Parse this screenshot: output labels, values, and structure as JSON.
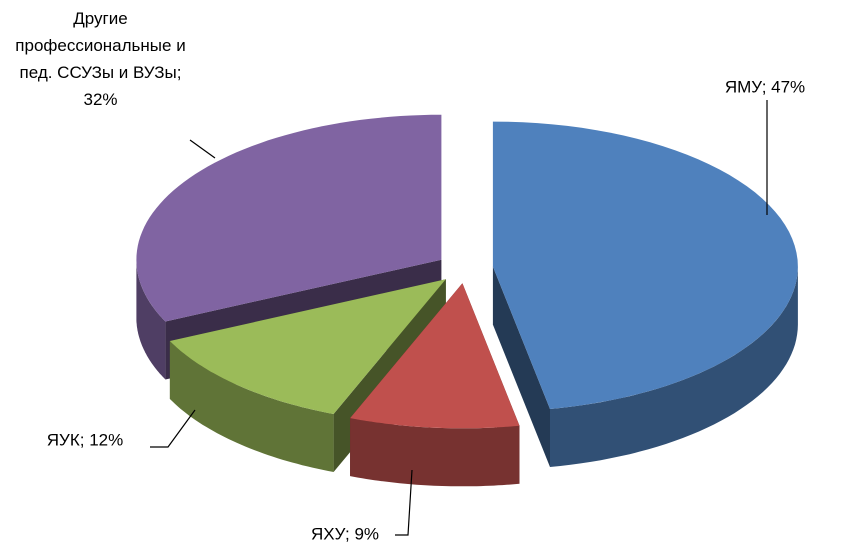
{
  "chart_data": {
    "type": "pie3d",
    "values": [
      47,
      9,
      12,
      32
    ],
    "value_labels": [
      "ЯМУ; 47%",
      "ЯХУ; 9%",
      "ЯУК; 12%",
      "Другие профессиональные и пед. ССУЗы и ВУЗы; 32%"
    ],
    "colors": [
      "#4f81bd",
      "#c0504d",
      "#9bbb59",
      "#8064a2"
    ]
  }
}
